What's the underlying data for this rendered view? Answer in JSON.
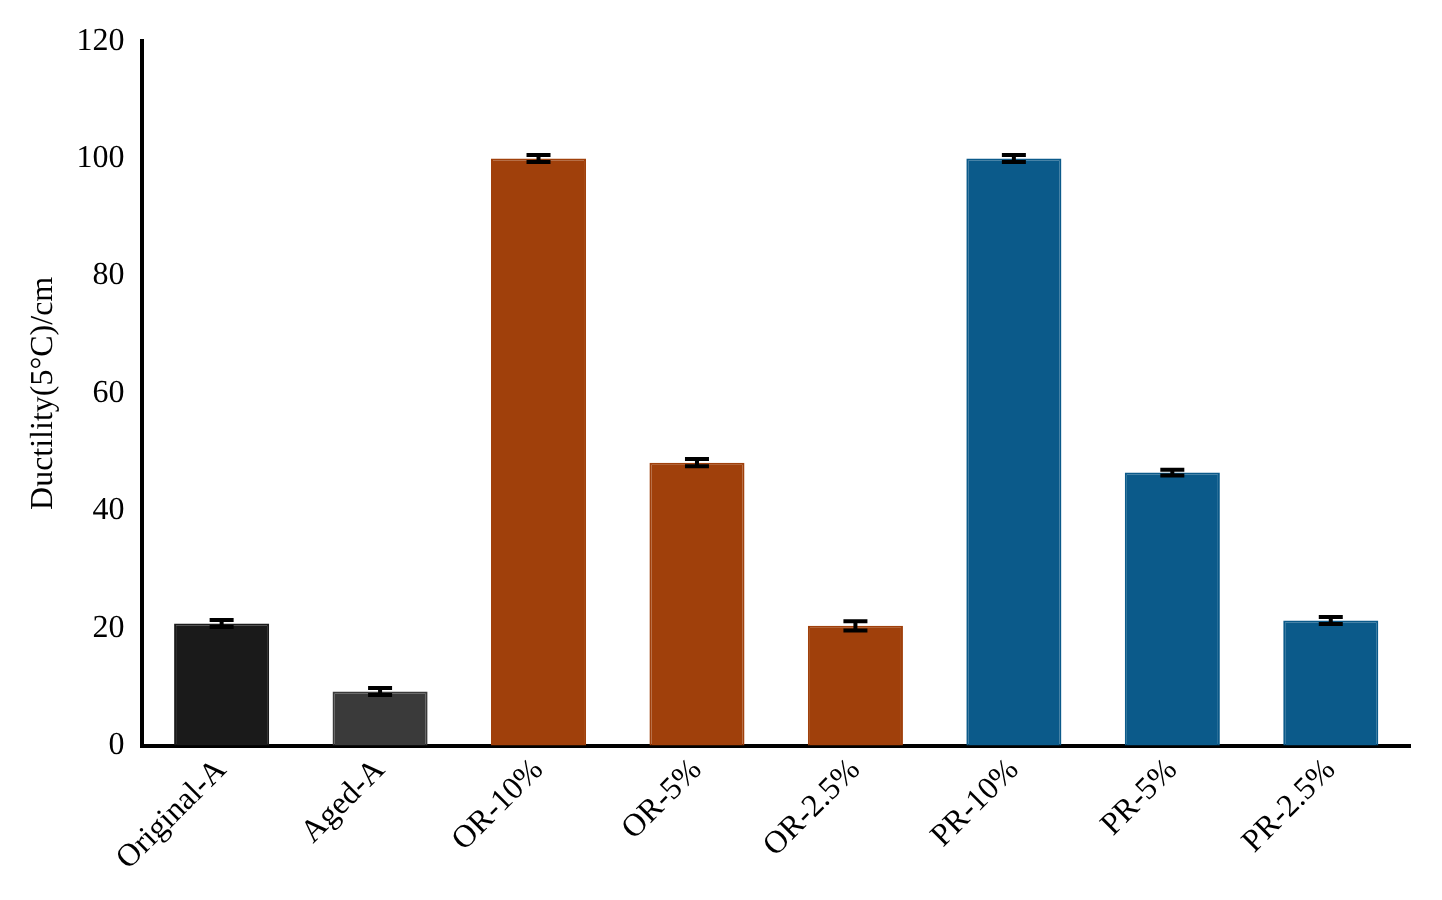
{
  "chart_data": {
    "type": "bar",
    "ylabel": "Ductility(5°C)/cm",
    "categories": [
      "Original-A",
      "Aged-A",
      "OR-10%",
      "OR-5%",
      "OR-2.5%",
      "PR-10%",
      "PR-5%",
      "PR-2.5%"
    ],
    "values": [
      20.8,
      9.2,
      100,
      48.2,
      20.4,
      100,
      46.5,
      21.3
    ],
    "errors": [
      0.6,
      0.6,
      0.6,
      0.6,
      0.8,
      0.6,
      0.5,
      0.6
    ],
    "colors": [
      "#1a1a1a",
      "#3a3a3a",
      "#a0400b",
      "#a0400b",
      "#a0400b",
      "#0b5a8a",
      "#0b5a8a",
      "#0b5a8a"
    ],
    "ylim": [
      0,
      120
    ],
    "yticks": [
      0,
      20,
      40,
      60,
      80,
      100,
      120
    ],
    "grid": false,
    "legend": false
  }
}
